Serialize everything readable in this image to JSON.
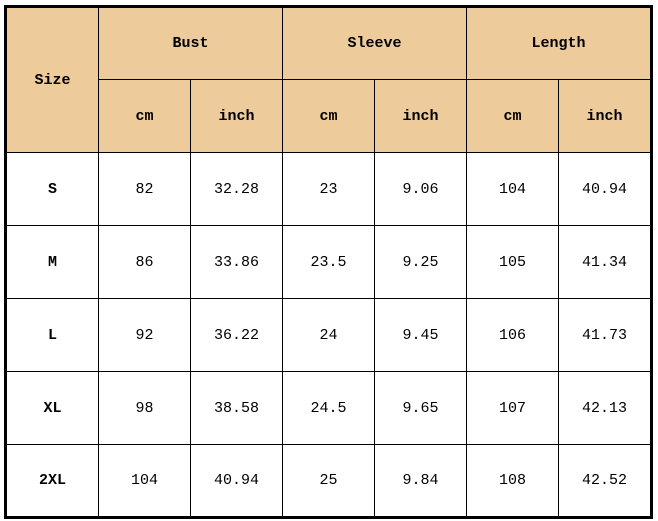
{
  "table": {
    "size_header": "Size",
    "groups": [
      "Bust",
      "Sleeve",
      "Length"
    ],
    "units": [
      "cm",
      "inch",
      "cm",
      "inch",
      "cm",
      "inch"
    ],
    "rows": [
      {
        "size": "S",
        "values": [
          "82",
          "32.28",
          "23",
          "9.06",
          "104",
          "40.94"
        ]
      },
      {
        "size": "M",
        "values": [
          "86",
          "33.86",
          "23.5",
          "9.25",
          "105",
          "41.34"
        ]
      },
      {
        "size": "L",
        "values": [
          "92",
          "36.22",
          "24",
          "9.45",
          "106",
          "41.73"
        ]
      },
      {
        "size": "XL",
        "values": [
          "98",
          "38.58",
          "24.5",
          "9.65",
          "107",
          "42.13"
        ]
      },
      {
        "size": "2XL",
        "values": [
          "104",
          "40.94",
          "25",
          "9.84",
          "108",
          "42.52"
        ]
      }
    ]
  },
  "colors": {
    "header_bg": "#edcb9b",
    "border": "#000000"
  }
}
